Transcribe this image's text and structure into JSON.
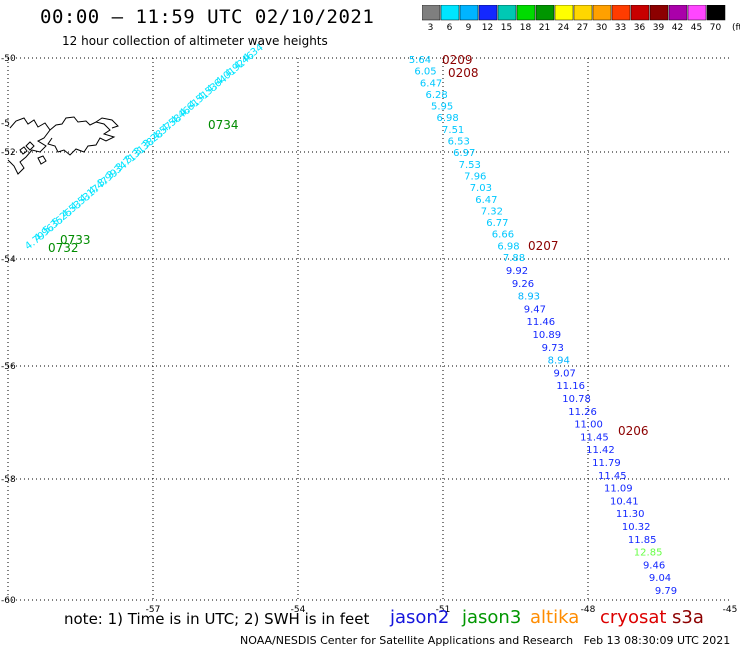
{
  "header": {
    "title": "00:00 – 11:59 UTC 02/10/2021",
    "subtitle": "12 hour collection of altimeter wave heights"
  },
  "colorbar": {
    "labels": [
      "3",
      "6",
      "9",
      "12",
      "15",
      "18",
      "21",
      "24",
      "27",
      "30",
      "33",
      "36",
      "39",
      "42",
      "45",
      "70"
    ],
    "unit": "(ft)",
    "colors": [
      "#7f7f7f",
      "#00e5ff",
      "#00b4ff",
      "#1428ff",
      "#00c8b4",
      "#00dc00",
      "#009600",
      "#ffff00",
      "#ffd700",
      "#ffa000",
      "#ff3c00",
      "#c80000",
      "#8c0000",
      "#aa00aa",
      "#ff46ff",
      "#000000"
    ]
  },
  "axes": {
    "lat_labels": [
      "-50",
      "-52",
      "-54",
      "-56",
      "-58",
      "-60"
    ],
    "lon_labels": [
      "-57",
      "-54",
      "-51",
      "-48",
      "-45"
    ],
    "lat_label_fragment": "-5"
  },
  "tracks": [
    {
      "satellite": "jason3",
      "color": "#00e5ff",
      "time_label": "0734",
      "label_color": "#008c00",
      "values": [
        "4.79",
        "4.96",
        "5.35",
        "5.25",
        "4.53",
        "4.53",
        "4.17",
        "4.47",
        "3.99",
        "3.34",
        "3.71",
        "3.31",
        "3.38",
        "3.28",
        "4.57",
        "4.58",
        "4.46",
        "4.61",
        "4.51",
        "4.53",
        "4.64",
        "4.01",
        "4.92",
        "4.46",
        "4.34"
      ]
    },
    {
      "satellite": "jason3",
      "color": "#00e5ff",
      "time_labels": [
        "0733",
        "0732"
      ],
      "label_color": "#008c00"
    },
    {
      "satellite": "cryosat",
      "color": "#00c8ff",
      "time_labels": [
        "0209",
        "0208"
      ],
      "label_color": "#8c0000",
      "values": [
        "5.64",
        "6.05",
        "6.47",
        "6.28",
        "5.95",
        "6.98",
        "7.51",
        "6.53",
        "6.97",
        "7.53",
        "7.96",
        "7.03",
        "6.47",
        "7.32",
        "6.77",
        "6.66",
        "6.98",
        "7.88"
      ]
    },
    {
      "satellite": "cryosat",
      "color": "#1428ff",
      "time_labels": [
        "0207",
        "0206"
      ],
      "label_color": "#8c0000",
      "values": [
        "9.92",
        "9.26",
        "8.93",
        "9.47",
        "11.46",
        "10.89",
        "9.73",
        "8.94",
        "9.07",
        "11.16",
        "10.78",
        "11.26",
        "11.00",
        "11.45",
        "11.42",
        "11.79",
        "11.45",
        "11.09",
        "10.41",
        "11.30",
        "10.32",
        "11.85",
        "12.85",
        "9.46",
        "9.04",
        "9.79"
      ],
      "highlight_colors": {
        "2": "#00b4ff",
        "7": "#00b4ff",
        "22": "#66ff44"
      }
    }
  ],
  "footer": {
    "note": "note: 1) Time is in UTC; 2) SWH is in feet",
    "satellites": [
      {
        "name": "jason2",
        "color": "#1414dc"
      },
      {
        "name": "jason3",
        "color": "#009600"
      },
      {
        "name": "altika",
        "color": "#ff8c00"
      },
      {
        "name": "cryosat",
        "color": "#dc0000"
      },
      {
        "name": "s3a",
        "color": "#8c0000"
      }
    ],
    "credit": "NOAA/NESDIS Center for Satellite Applications and Research",
    "timestamp": "Feb 13 08:30:09 UTC 2021"
  }
}
